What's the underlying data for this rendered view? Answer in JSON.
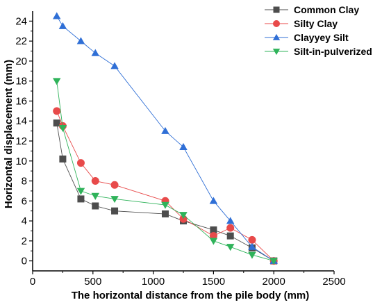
{
  "chart_data": {
    "type": "line",
    "xlabel": "The horizontal distance from the pile body (mm)",
    "ylabel": "Horizontal displacement (mm)",
    "xlim": [
      0,
      2500
    ],
    "ylim": [
      -1,
      25
    ],
    "x_ticks": [
      0,
      500,
      1000,
      1500,
      2000,
      2500
    ],
    "y_ticks": [
      0,
      2,
      4,
      6,
      8,
      10,
      12,
      14,
      16,
      18,
      20,
      22,
      24
    ],
    "grid": false,
    "legend_position": "top-right, outside plot",
    "series": [
      {
        "name": "Common Clay",
        "color": "#4d4d4d",
        "marker": "square",
        "x": [
          200,
          250,
          400,
          520,
          680,
          1100,
          1250,
          1500,
          1640,
          1820,
          2000
        ],
        "y": [
          13.8,
          10.2,
          6.2,
          5.5,
          5.0,
          4.7,
          4.0,
          3.1,
          2.5,
          1.3,
          0.0
        ]
      },
      {
        "name": "Silty Clay",
        "color": "#e84a4a",
        "marker": "circle",
        "x": [
          200,
          250,
          400,
          520,
          680,
          1100,
          1250,
          1500,
          1640,
          1820,
          2000
        ],
        "y": [
          15.0,
          13.5,
          9.8,
          8.0,
          7.6,
          6.0,
          4.2,
          2.5,
          3.3,
          2.1,
          0.0
        ]
      },
      {
        "name": "Clayyey Silt",
        "color": "#2f6fd6",
        "marker": "triangle-up",
        "x": [
          200,
          250,
          400,
          520,
          680,
          1100,
          1250,
          1500,
          1640,
          1820,
          2000
        ],
        "y": [
          24.5,
          23.5,
          22.0,
          20.8,
          19.5,
          13.0,
          11.4,
          6.0,
          4.0,
          1.4,
          0.0
        ]
      },
      {
        "name": "Silt-in-pulverized",
        "color": "#2fb35a",
        "marker": "triangle-down",
        "x": [
          200,
          250,
          400,
          520,
          680,
          1100,
          1250,
          1500,
          1640,
          1820,
          2000
        ],
        "y": [
          18.0,
          13.3,
          7.0,
          6.5,
          6.2,
          5.6,
          4.6,
          2.0,
          1.4,
          0.6,
          0.0
        ]
      }
    ]
  }
}
